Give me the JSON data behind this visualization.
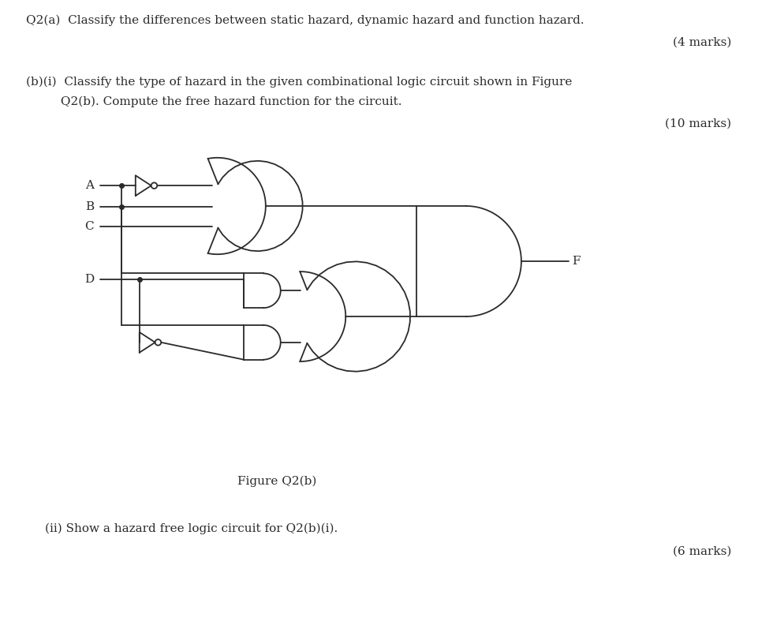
{
  "bg_color": "#ffffff",
  "text_color": "#2a2a2a",
  "line_color": "#2a2a2a",
  "lw": 1.3,
  "texts": {
    "q2a": "Q2(a)  Classify the differences between static hazard, dynamic hazard and function hazard.",
    "marks4": "(4 marks)",
    "bxi_1": "(b)(i)  Classify the type of hazard in the given combinational logic circuit shown in Figure",
    "bxi_2": "         Q2(b). Compute the free hazard function for the circuit.",
    "marks10": "(10 marks)",
    "fig_label": "Figure Q2(b)",
    "bxii": "(ii) Show a hazard free logic circuit for Q2(b)(i).",
    "marks6": "(6 marks)"
  },
  "font_size": 11
}
